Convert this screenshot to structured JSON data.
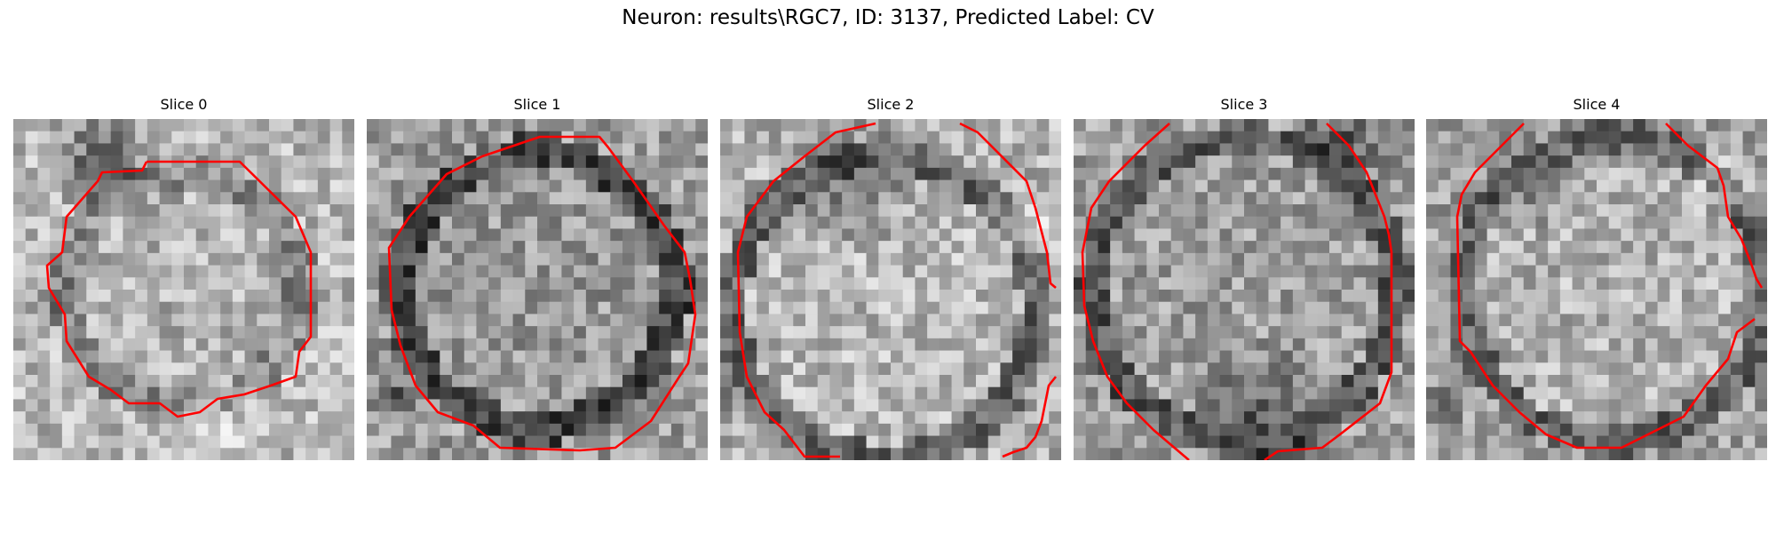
{
  "figure": {
    "suptitle": "Neuron: results\\RGC7, ID: 3137, Predicted Label: CV"
  },
  "panels": [
    {
      "title": "Slice 0",
      "contour_color": "#ff0000"
    },
    {
      "title": "Slice 1",
      "contour_color": "#ff0000"
    },
    {
      "title": "Slice 2",
      "contour_color": "#ff0000"
    },
    {
      "title": "Slice 3",
      "contour_color": "#ff0000"
    },
    {
      "title": "Slice 4",
      "contour_color": "#ff0000"
    }
  ]
}
